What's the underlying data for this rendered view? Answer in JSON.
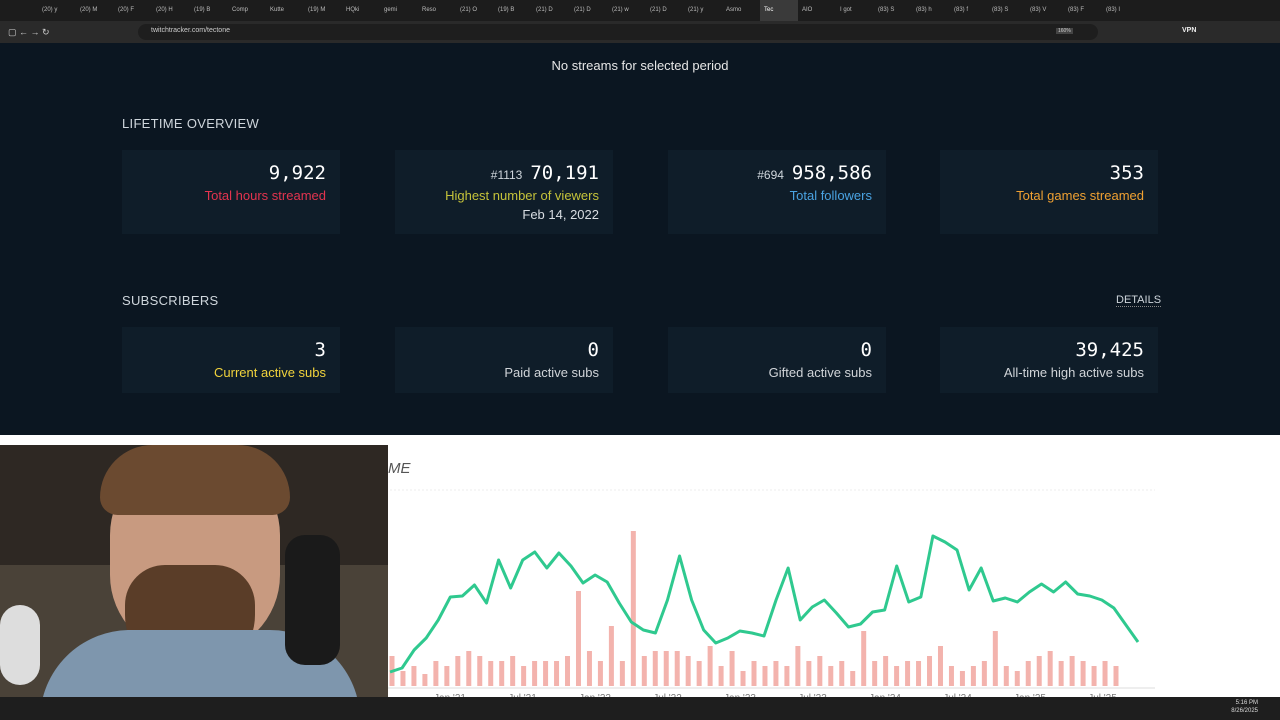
{
  "browser": {
    "tabs": [
      "(20) y",
      "(20) M",
      "(20) F",
      "(20) H",
      "(19) B",
      "Comp",
      "Kutte",
      "(19) M",
      "HQki",
      "gemi",
      "Reso",
      "(21) O",
      "(19) B",
      "(21) D",
      "(21) D",
      "(21) w",
      "(21) D",
      "(21) y",
      "Asmo",
      "Tec",
      "AIO",
      "I got",
      "(83) S",
      "(83) h",
      "(83) f",
      "(83) S",
      "(83) V",
      "(83) F",
      "(83) I"
    ],
    "url": "twitchtracker.com/tectone",
    "zoom": "160%",
    "vpn": "VPN"
  },
  "page": {
    "no_streams": "No streams for selected period",
    "lifetime_title": "LIFETIME OVERVIEW",
    "lifetime": [
      {
        "value": "9,922",
        "label": "Total hours streamed"
      },
      {
        "rank": "#1113",
        "value": "70,191",
        "label": "Highest number of viewers",
        "sub": "Feb 14, 2022"
      },
      {
        "rank": "#694",
        "value": "958,586",
        "label": "Total followers"
      },
      {
        "value": "353",
        "label": "Total games streamed"
      }
    ],
    "subscribers_title": "SUBSCRIBERS",
    "details": "DETAILS",
    "subscribers": [
      {
        "value": "3",
        "label": "Current active subs"
      },
      {
        "value": "0",
        "label": "Paid active subs"
      },
      {
        "value": "0",
        "label": "Gifted active subs"
      },
      {
        "value": "39,425",
        "label": "All-time high active subs"
      }
    ]
  },
  "chart_data": {
    "type": "line",
    "title": "ME",
    "ylim": [
      0,
      160
    ],
    "x_labels": [
      "Jan '21",
      "Jul '21",
      "Jan '22",
      "Jul '22",
      "Jan '23",
      "Jul '23",
      "Jan '24",
      "Jul '24",
      "Jan '25",
      "Jul '25"
    ],
    "series": [
      {
        "color": "#2fc98f",
        "values": [
          14,
          18,
          36,
          48,
          66,
          89,
          90,
          101,
          83,
          126,
          98,
          126,
          134,
          118,
          133,
          120,
          103,
          111,
          104,
          83,
          64,
          56,
          53,
          86,
          130,
          86,
          56,
          43,
          48,
          55,
          53,
          50,
          86,
          118,
          66,
          79,
          86,
          73,
          59,
          62,
          74,
          76,
          120,
          84,
          89,
          150,
          144,
          136,
          96,
          118,
          85,
          88,
          84,
          94,
          102,
          94,
          104,
          92,
          90,
          86,
          78,
          61,
          44
        ]
      },
      {
        "color": "#f3b3ad",
        "values": [
          30,
          15,
          20,
          12,
          25,
          20,
          30,
          35,
          30,
          25,
          25,
          30,
          20,
          25,
          25,
          25,
          30,
          95,
          35,
          25,
          60,
          25,
          155,
          30,
          35,
          35,
          35,
          30,
          25,
          40,
          20,
          35,
          15,
          25,
          20,
          25,
          20,
          40,
          25,
          30,
          20,
          25,
          15,
          55,
          25,
          30,
          20,
          25,
          25,
          30,
          40,
          20,
          15,
          20,
          25,
          55,
          20,
          15,
          25,
          30,
          35,
          25,
          30,
          25,
          20,
          25,
          20
        ]
      }
    ]
  },
  "taskbar": {
    "time": "5:16 PM",
    "date": "8/26/2025"
  }
}
